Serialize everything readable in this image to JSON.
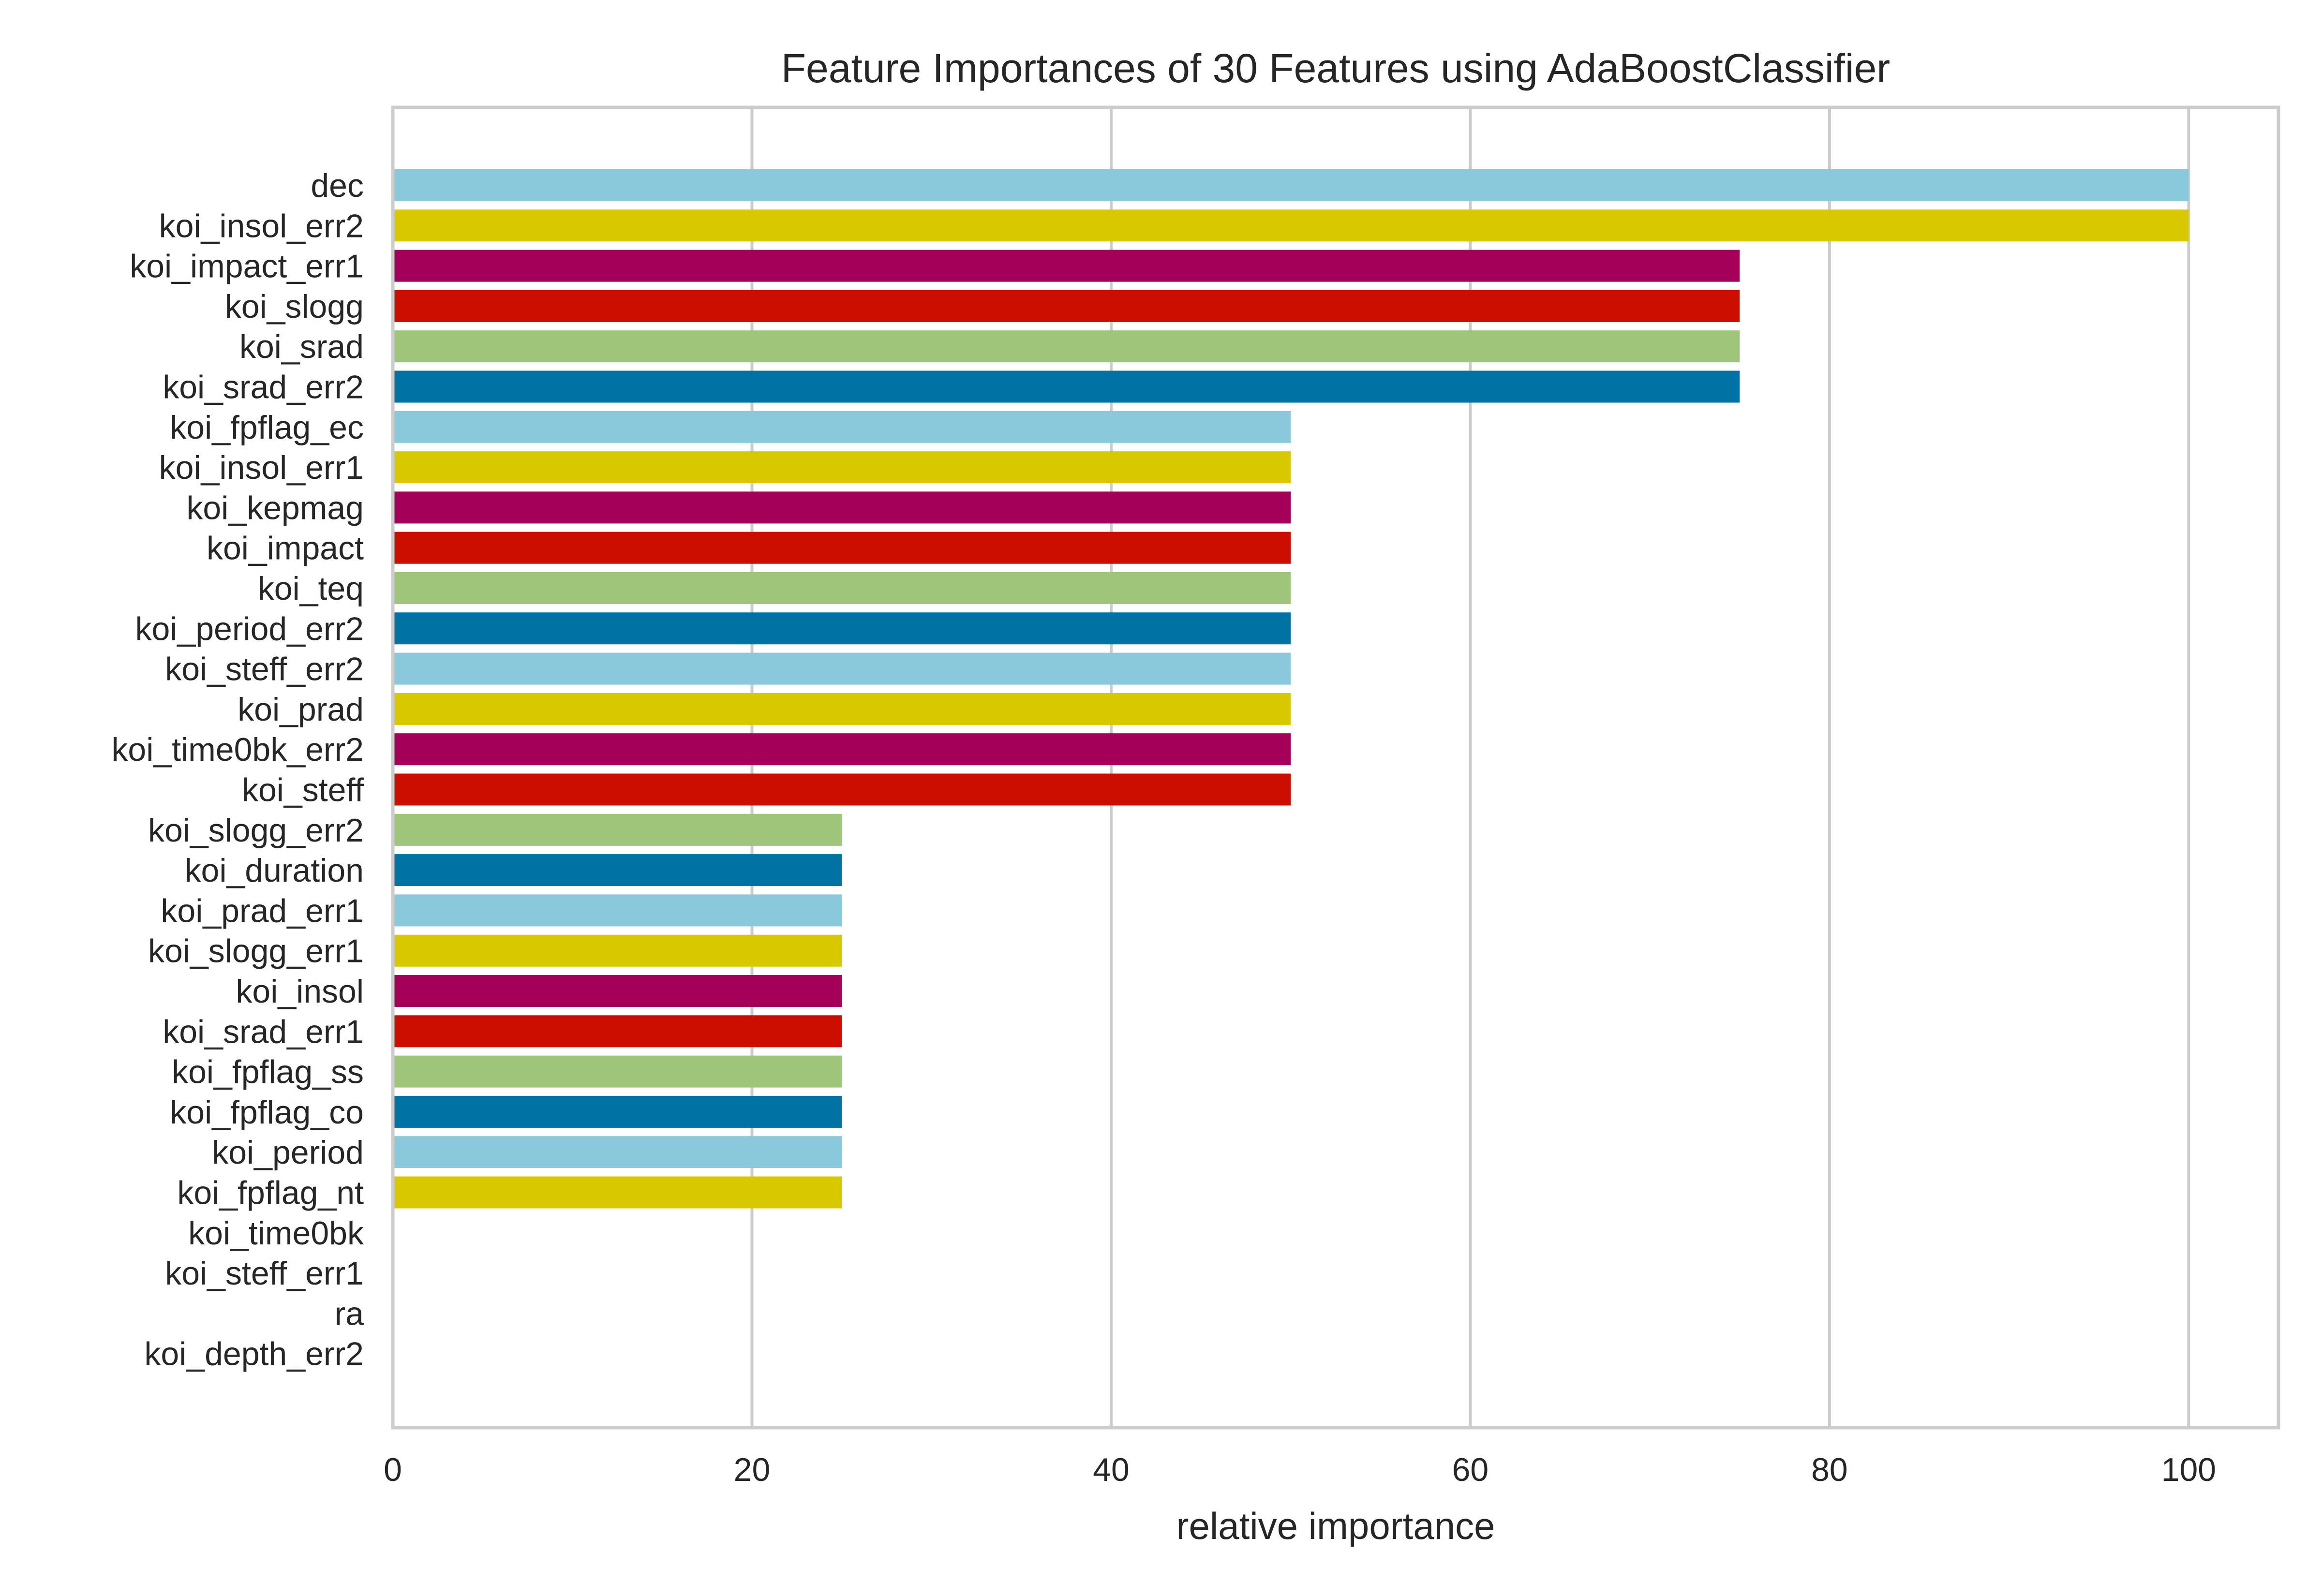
{
  "chart_data": {
    "type": "bar",
    "orientation": "horizontal",
    "title": "Feature Importances of 30 Features using AdaBoostClassifier",
    "xlabel": "relative importance",
    "ylabel": "",
    "xlim": [
      0,
      105
    ],
    "xticks": [
      0,
      20,
      40,
      60,
      80,
      100
    ],
    "grid": true,
    "categories": [
      "dec",
      "koi_insol_err2",
      "koi_impact_err1",
      "koi_slogg",
      "koi_srad",
      "koi_srad_err2",
      "koi_fpflag_ec",
      "koi_insol_err1",
      "koi_kepmag",
      "koi_impact",
      "koi_teq",
      "koi_period_err2",
      "koi_steff_err2",
      "koi_prad",
      "koi_time0bk_err2",
      "koi_steff",
      "koi_slogg_err2",
      "koi_duration",
      "koi_prad_err1",
      "koi_slogg_err1",
      "koi_insol",
      "koi_srad_err1",
      "koi_fpflag_ss",
      "koi_fpflag_co",
      "koi_period",
      "koi_fpflag_nt",
      "koi_time0bk",
      "koi_steff_err1",
      "ra",
      "koi_depth_err2"
    ],
    "values": [
      100,
      100,
      75,
      75,
      75,
      75,
      50,
      50,
      50,
      50,
      50,
      50,
      50,
      50,
      50,
      50,
      25,
      25,
      25,
      25,
      25,
      25,
      25,
      25,
      25,
      25,
      0,
      0,
      0,
      0
    ],
    "palette": [
      "#8ac9db",
      "#d8c800",
      "#a4005a",
      "#cc0e00",
      "#9ec57a",
      "#0072a3"
    ]
  }
}
